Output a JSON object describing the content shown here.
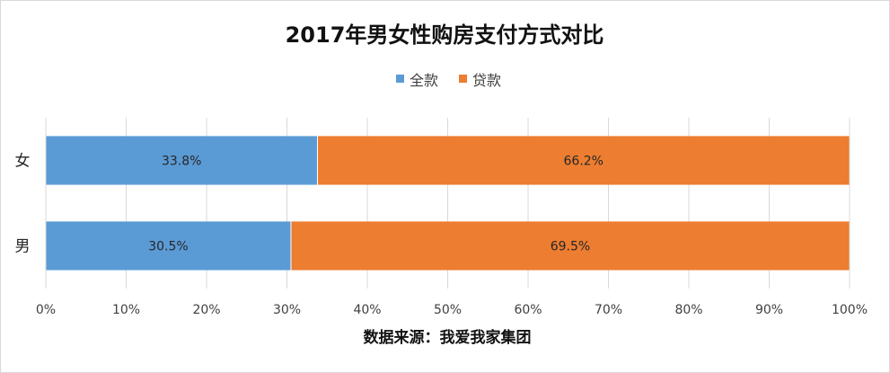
{
  "chart_data": {
    "type": "bar",
    "orientation": "horizontal",
    "stacked": true,
    "title": "2017年男女性购房支付方式对比",
    "categories": [
      "女",
      "男"
    ],
    "series": [
      {
        "name": "全款",
        "values": [
          33.8,
          30.5
        ],
        "labels": [
          "33.8%",
          "30.5%"
        ],
        "color": "#5b9bd5"
      },
      {
        "name": "贷款",
        "values": [
          66.2,
          69.5
        ],
        "labels": [
          "66.2%",
          "69.5%"
        ],
        "color": "#ed7d31"
      }
    ],
    "xlim": [
      0,
      100
    ],
    "xticks": [
      0,
      10,
      20,
      30,
      40,
      50,
      60,
      70,
      80,
      90,
      100
    ],
    "xtick_labels": [
      "0%",
      "10%",
      "20%",
      "30%",
      "40%",
      "50%",
      "60%",
      "70%",
      "80%",
      "90%",
      "100%"
    ],
    "xlabel": "数据来源：我爱我家集团",
    "ylabel": "",
    "grid": true,
    "legend": "top-center"
  }
}
